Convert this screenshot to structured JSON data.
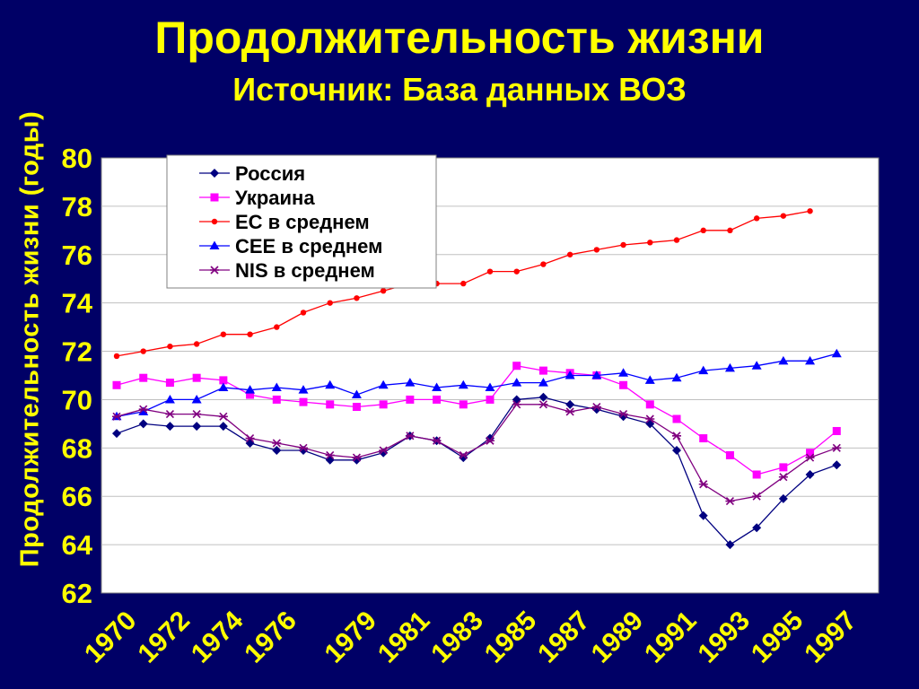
{
  "page": {
    "title": "Продолжительность жизни",
    "subtitle": "Источник: База данных ВОЗ"
  },
  "chart_data": {
    "type": "line",
    "title": "Продолжительность жизни",
    "subtitle": "Источник: База данных ВОЗ",
    "ylabel": "Продолжительность жизни  (годы)",
    "xlabel": "",
    "ylim": [
      62,
      80
    ],
    "yticks": [
      62,
      64,
      66,
      68,
      70,
      72,
      74,
      76,
      78,
      80
    ],
    "x": [
      1970,
      1971,
      1972,
      1973,
      1974,
      1975,
      1976,
      1977,
      1978,
      1979,
      1980,
      1981,
      1982,
      1983,
      1984,
      1985,
      1986,
      1987,
      1988,
      1989,
      1990,
      1991,
      1992,
      1993,
      1994,
      1995,
      1996,
      1997,
      1998
    ],
    "xticks": [
      "1970",
      "1972",
      "1974",
      "1976",
      "1979",
      "1981",
      "1983",
      "1985",
      "1987",
      "1989",
      "1991",
      "1993",
      "1995",
      "1997"
    ],
    "grid": true,
    "legend_position": "top-left",
    "plot_background": "#ffffff",
    "series": [
      {
        "name": "Россия",
        "color": "#000080",
        "marker": "diamond",
        "values": [
          68.6,
          69.0,
          68.9,
          68.9,
          68.9,
          68.2,
          67.9,
          67.9,
          67.5,
          67.5,
          67.8,
          68.5,
          68.3,
          67.6,
          68.4,
          70.0,
          70.1,
          69.8,
          69.6,
          69.3,
          69.0,
          67.9,
          65.2,
          64.0,
          64.7,
          65.9,
          66.9,
          67.3,
          null
        ]
      },
      {
        "name": "Украина",
        "color": "#ff00ff",
        "marker": "square",
        "values": [
          70.6,
          70.9,
          70.7,
          70.9,
          70.8,
          70.2,
          70.0,
          69.9,
          69.8,
          69.7,
          69.8,
          70.0,
          70.0,
          69.8,
          70.0,
          71.4,
          71.2,
          71.1,
          71.0,
          70.6,
          69.8,
          69.2,
          68.4,
          67.7,
          66.9,
          67.2,
          67.8,
          68.7,
          null
        ]
      },
      {
        "name": "ЕС в среднем",
        "color": "#ff0000",
        "marker": "circle",
        "values": [
          71.8,
          72.0,
          72.2,
          72.3,
          72.7,
          72.7,
          73.0,
          73.6,
          74.0,
          74.2,
          74.5,
          74.8,
          74.8,
          74.8,
          75.3,
          75.3,
          75.6,
          76.0,
          76.2,
          76.4,
          76.5,
          76.6,
          77.0,
          77.0,
          77.5,
          77.6,
          77.8,
          null,
          null
        ]
      },
      {
        "name": "CEE в среднем",
        "color": "#0000ff",
        "marker": "triangle",
        "values": [
          69.3,
          69.5,
          70.0,
          70.0,
          70.5,
          70.4,
          70.5,
          70.4,
          70.6,
          70.2,
          70.6,
          70.7,
          70.5,
          70.6,
          70.5,
          70.7,
          70.7,
          71.0,
          71.0,
          71.1,
          70.8,
          70.9,
          71.2,
          71.3,
          71.4,
          71.6,
          71.6,
          71.9,
          null
        ]
      },
      {
        "name": "NIS в среднем",
        "color": "#800080",
        "marker": "star",
        "values": [
          69.3,
          69.6,
          69.4,
          69.4,
          69.3,
          68.4,
          68.2,
          68.0,
          67.7,
          67.6,
          67.9,
          68.5,
          68.3,
          67.7,
          68.3,
          69.8,
          69.8,
          69.5,
          69.7,
          69.4,
          69.2,
          68.5,
          66.5,
          65.8,
          66.0,
          66.8,
          67.6,
          68.0,
          null
        ]
      }
    ]
  }
}
